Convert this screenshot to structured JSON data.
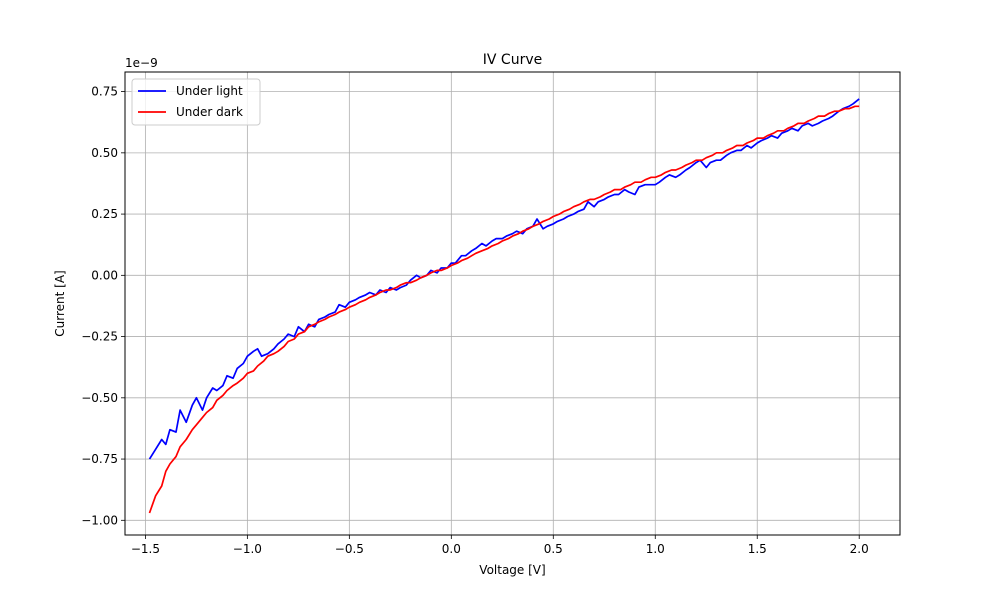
{
  "chart_data": {
    "type": "line",
    "title": "IV Curve",
    "xlabel": "Voltage [V]",
    "ylabel": "Current [A]",
    "offset_text": "1e−9",
    "y_scale_factor": 1e-09,
    "xlim": [
      -1.6,
      2.2
    ],
    "ylim": [
      -1.06,
      0.83
    ],
    "xticks": [
      -1.5,
      -1.0,
      -0.5,
      0.0,
      0.5,
      1.0,
      1.5,
      2.0
    ],
    "xtick_labels": [
      "−1.5",
      "−1.0",
      "−0.5",
      "0.0",
      "0.5",
      "1.0",
      "1.5",
      "2.0"
    ],
    "yticks": [
      -1.0,
      -0.75,
      -0.5,
      -0.25,
      0.0,
      0.25,
      0.5,
      0.75
    ],
    "ytick_labels": [
      "−1.00",
      "−0.75",
      "−0.50",
      "−0.25",
      "0.00",
      "0.25",
      "0.50",
      "0.75"
    ],
    "grid": true,
    "legend_position": "upper-left",
    "series": [
      {
        "name": "Under light",
        "color": "#0000ff",
        "x": [
          -1.48,
          -1.45,
          -1.42,
          -1.4,
          -1.38,
          -1.35,
          -1.33,
          -1.3,
          -1.27,
          -1.25,
          -1.22,
          -1.2,
          -1.17,
          -1.15,
          -1.12,
          -1.1,
          -1.07,
          -1.05,
          -1.02,
          -1.0,
          -0.97,
          -0.95,
          -0.93,
          -0.9,
          -0.87,
          -0.85,
          -0.82,
          -0.8,
          -0.77,
          -0.75,
          -0.72,
          -0.7,
          -0.67,
          -0.65,
          -0.62,
          -0.6,
          -0.57,
          -0.55,
          -0.52,
          -0.5,
          -0.47,
          -0.45,
          -0.42,
          -0.4,
          -0.37,
          -0.35,
          -0.32,
          -0.3,
          -0.27,
          -0.25,
          -0.22,
          -0.2,
          -0.17,
          -0.15,
          -0.12,
          -0.1,
          -0.07,
          -0.05,
          -0.02,
          0.0,
          0.02,
          0.05,
          0.07,
          0.1,
          0.12,
          0.15,
          0.17,
          0.2,
          0.22,
          0.25,
          0.27,
          0.3,
          0.32,
          0.35,
          0.37,
          0.4,
          0.42,
          0.45,
          0.47,
          0.5,
          0.52,
          0.55,
          0.57,
          0.6,
          0.62,
          0.65,
          0.67,
          0.7,
          0.72,
          0.75,
          0.77,
          0.8,
          0.82,
          0.85,
          0.87,
          0.9,
          0.92,
          0.95,
          0.97,
          1.0,
          1.02,
          1.05,
          1.07,
          1.1,
          1.12,
          1.15,
          1.17,
          1.2,
          1.22,
          1.25,
          1.27,
          1.3,
          1.32,
          1.35,
          1.37,
          1.4,
          1.42,
          1.45,
          1.47,
          1.5,
          1.52,
          1.55,
          1.57,
          1.6,
          1.62,
          1.65,
          1.67,
          1.7,
          1.72,
          1.75,
          1.77,
          1.8,
          1.82,
          1.85,
          1.87,
          1.9,
          1.92,
          1.95,
          1.97,
          2.0
        ],
        "y": [
          -0.75,
          -0.71,
          -0.67,
          -0.69,
          -0.63,
          -0.64,
          -0.55,
          -0.6,
          -0.53,
          -0.5,
          -0.55,
          -0.5,
          -0.46,
          -0.47,
          -0.45,
          -0.41,
          -0.42,
          -0.38,
          -0.36,
          -0.33,
          -0.31,
          -0.3,
          -0.33,
          -0.32,
          -0.3,
          -0.28,
          -0.26,
          -0.24,
          -0.25,
          -0.21,
          -0.23,
          -0.2,
          -0.21,
          -0.18,
          -0.17,
          -0.16,
          -0.15,
          -0.12,
          -0.13,
          -0.11,
          -0.1,
          -0.09,
          -0.08,
          -0.07,
          -0.08,
          -0.06,
          -0.07,
          -0.05,
          -0.06,
          -0.05,
          -0.04,
          -0.02,
          0.0,
          -0.01,
          0.0,
          0.02,
          0.01,
          0.03,
          0.03,
          0.05,
          0.05,
          0.08,
          0.08,
          0.1,
          0.11,
          0.13,
          0.12,
          0.14,
          0.15,
          0.15,
          0.16,
          0.17,
          0.18,
          0.17,
          0.19,
          0.2,
          0.23,
          0.19,
          0.2,
          0.21,
          0.22,
          0.23,
          0.24,
          0.25,
          0.26,
          0.27,
          0.3,
          0.28,
          0.3,
          0.31,
          0.32,
          0.33,
          0.33,
          0.35,
          0.34,
          0.33,
          0.36,
          0.37,
          0.37,
          0.37,
          0.38,
          0.4,
          0.41,
          0.4,
          0.41,
          0.43,
          0.44,
          0.46,
          0.47,
          0.44,
          0.46,
          0.47,
          0.47,
          0.49,
          0.5,
          0.51,
          0.51,
          0.53,
          0.52,
          0.54,
          0.55,
          0.56,
          0.57,
          0.56,
          0.58,
          0.59,
          0.6,
          0.59,
          0.61,
          0.62,
          0.61,
          0.62,
          0.63,
          0.64,
          0.65,
          0.67,
          0.68,
          0.69,
          0.7,
          0.72
        ]
      },
      {
        "name": "Under dark",
        "color": "#ff0000",
        "x": [
          -1.48,
          -1.45,
          -1.42,
          -1.4,
          -1.38,
          -1.35,
          -1.33,
          -1.3,
          -1.27,
          -1.25,
          -1.22,
          -1.2,
          -1.17,
          -1.15,
          -1.12,
          -1.1,
          -1.07,
          -1.05,
          -1.02,
          -1.0,
          -0.97,
          -0.95,
          -0.92,
          -0.9,
          -0.87,
          -0.85,
          -0.82,
          -0.8,
          -0.77,
          -0.75,
          -0.72,
          -0.7,
          -0.67,
          -0.65,
          -0.62,
          -0.6,
          -0.57,
          -0.55,
          -0.52,
          -0.5,
          -0.47,
          -0.45,
          -0.42,
          -0.4,
          -0.37,
          -0.35,
          -0.32,
          -0.3,
          -0.27,
          -0.25,
          -0.22,
          -0.2,
          -0.17,
          -0.15,
          -0.12,
          -0.1,
          -0.07,
          -0.05,
          -0.02,
          0.0,
          0.03,
          0.05,
          0.08,
          0.1,
          0.12,
          0.15,
          0.18,
          0.2,
          0.23,
          0.25,
          0.28,
          0.3,
          0.33,
          0.35,
          0.38,
          0.4,
          0.43,
          0.45,
          0.48,
          0.5,
          0.53,
          0.55,
          0.58,
          0.6,
          0.63,
          0.65,
          0.68,
          0.7,
          0.73,
          0.75,
          0.78,
          0.8,
          0.83,
          0.85,
          0.88,
          0.9,
          0.93,
          0.95,
          0.98,
          1.0,
          1.03,
          1.05,
          1.08,
          1.1,
          1.13,
          1.15,
          1.18,
          1.2,
          1.23,
          1.25,
          1.28,
          1.3,
          1.33,
          1.35,
          1.38,
          1.4,
          1.43,
          1.45,
          1.48,
          1.5,
          1.53,
          1.55,
          1.58,
          1.6,
          1.63,
          1.65,
          1.68,
          1.7,
          1.73,
          1.75,
          1.78,
          1.8,
          1.83,
          1.85,
          1.88,
          1.9,
          1.93,
          1.95,
          1.98,
          2.0
        ],
        "y": [
          -0.97,
          -0.9,
          -0.86,
          -0.8,
          -0.77,
          -0.74,
          -0.7,
          -0.67,
          -0.63,
          -0.61,
          -0.58,
          -0.56,
          -0.54,
          -0.51,
          -0.49,
          -0.47,
          -0.45,
          -0.44,
          -0.42,
          -0.4,
          -0.39,
          -0.37,
          -0.35,
          -0.33,
          -0.32,
          -0.31,
          -0.29,
          -0.27,
          -0.26,
          -0.24,
          -0.23,
          -0.21,
          -0.2,
          -0.19,
          -0.18,
          -0.17,
          -0.16,
          -0.15,
          -0.14,
          -0.13,
          -0.12,
          -0.11,
          -0.1,
          -0.09,
          -0.08,
          -0.07,
          -0.06,
          -0.06,
          -0.05,
          -0.04,
          -0.03,
          -0.03,
          -0.02,
          -0.01,
          0.0,
          0.01,
          0.02,
          0.02,
          0.03,
          0.04,
          0.05,
          0.06,
          0.07,
          0.08,
          0.09,
          0.1,
          0.11,
          0.12,
          0.13,
          0.14,
          0.15,
          0.16,
          0.17,
          0.18,
          0.19,
          0.2,
          0.21,
          0.22,
          0.23,
          0.24,
          0.25,
          0.26,
          0.27,
          0.28,
          0.29,
          0.3,
          0.31,
          0.31,
          0.32,
          0.33,
          0.34,
          0.35,
          0.35,
          0.36,
          0.37,
          0.38,
          0.38,
          0.39,
          0.4,
          0.4,
          0.41,
          0.42,
          0.43,
          0.43,
          0.44,
          0.45,
          0.46,
          0.47,
          0.47,
          0.48,
          0.49,
          0.5,
          0.5,
          0.51,
          0.52,
          0.53,
          0.53,
          0.54,
          0.55,
          0.56,
          0.56,
          0.57,
          0.58,
          0.59,
          0.59,
          0.6,
          0.61,
          0.62,
          0.62,
          0.63,
          0.64,
          0.65,
          0.65,
          0.66,
          0.67,
          0.67,
          0.68,
          0.68,
          0.69,
          0.69
        ]
      }
    ]
  }
}
